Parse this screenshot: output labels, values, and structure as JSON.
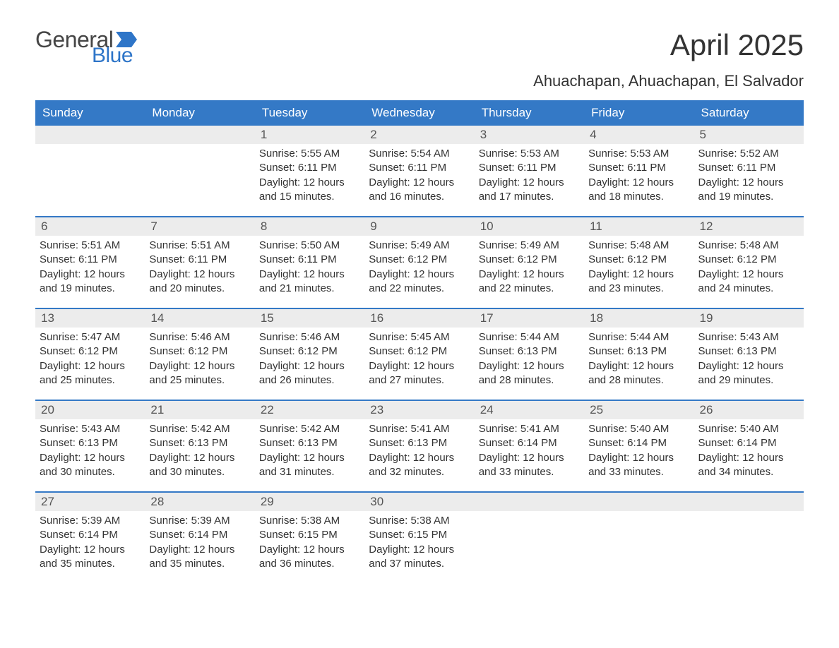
{
  "brand": {
    "word1": "General",
    "word2": "Blue",
    "word1_color": "#454545",
    "word2_color": "#2e75c8"
  },
  "title": "April 2025",
  "subtitle": "Ahuachapan, Ahuachapan, El Salvador",
  "colors": {
    "header_bg": "#3479c6",
    "header_text": "#ffffff",
    "daynum_bg": "#ececec",
    "week_border": "#3479c6",
    "body_text": "#333333",
    "background": "#ffffff"
  },
  "typography": {
    "title_fontsize": 42,
    "subtitle_fontsize": 22,
    "weekday_fontsize": 17,
    "daynum_fontsize": 17,
    "cell_fontsize": 15,
    "font_family": "Segoe UI"
  },
  "layout": {
    "columns": 7,
    "rows": 5,
    "leading_blanks": 2,
    "trailing_blanks": 3
  },
  "weekdays": [
    "Sunday",
    "Monday",
    "Tuesday",
    "Wednesday",
    "Thursday",
    "Friday",
    "Saturday"
  ],
  "days": [
    {
      "n": 1,
      "sunrise": "5:55 AM",
      "sunset": "6:11 PM",
      "daylight": "12 hours and 15 minutes."
    },
    {
      "n": 2,
      "sunrise": "5:54 AM",
      "sunset": "6:11 PM",
      "daylight": "12 hours and 16 minutes."
    },
    {
      "n": 3,
      "sunrise": "5:53 AM",
      "sunset": "6:11 PM",
      "daylight": "12 hours and 17 minutes."
    },
    {
      "n": 4,
      "sunrise": "5:53 AM",
      "sunset": "6:11 PM",
      "daylight": "12 hours and 18 minutes."
    },
    {
      "n": 5,
      "sunrise": "5:52 AM",
      "sunset": "6:11 PM",
      "daylight": "12 hours and 19 minutes."
    },
    {
      "n": 6,
      "sunrise": "5:51 AM",
      "sunset": "6:11 PM",
      "daylight": "12 hours and 19 minutes."
    },
    {
      "n": 7,
      "sunrise": "5:51 AM",
      "sunset": "6:11 PM",
      "daylight": "12 hours and 20 minutes."
    },
    {
      "n": 8,
      "sunrise": "5:50 AM",
      "sunset": "6:11 PM",
      "daylight": "12 hours and 21 minutes."
    },
    {
      "n": 9,
      "sunrise": "5:49 AM",
      "sunset": "6:12 PM",
      "daylight": "12 hours and 22 minutes."
    },
    {
      "n": 10,
      "sunrise": "5:49 AM",
      "sunset": "6:12 PM",
      "daylight": "12 hours and 22 minutes."
    },
    {
      "n": 11,
      "sunrise": "5:48 AM",
      "sunset": "6:12 PM",
      "daylight": "12 hours and 23 minutes."
    },
    {
      "n": 12,
      "sunrise": "5:48 AM",
      "sunset": "6:12 PM",
      "daylight": "12 hours and 24 minutes."
    },
    {
      "n": 13,
      "sunrise": "5:47 AM",
      "sunset": "6:12 PM",
      "daylight": "12 hours and 25 minutes."
    },
    {
      "n": 14,
      "sunrise": "5:46 AM",
      "sunset": "6:12 PM",
      "daylight": "12 hours and 25 minutes."
    },
    {
      "n": 15,
      "sunrise": "5:46 AM",
      "sunset": "6:12 PM",
      "daylight": "12 hours and 26 minutes."
    },
    {
      "n": 16,
      "sunrise": "5:45 AM",
      "sunset": "6:12 PM",
      "daylight": "12 hours and 27 minutes."
    },
    {
      "n": 17,
      "sunrise": "5:44 AM",
      "sunset": "6:13 PM",
      "daylight": "12 hours and 28 minutes."
    },
    {
      "n": 18,
      "sunrise": "5:44 AM",
      "sunset": "6:13 PM",
      "daylight": "12 hours and 28 minutes."
    },
    {
      "n": 19,
      "sunrise": "5:43 AM",
      "sunset": "6:13 PM",
      "daylight": "12 hours and 29 minutes."
    },
    {
      "n": 20,
      "sunrise": "5:43 AM",
      "sunset": "6:13 PM",
      "daylight": "12 hours and 30 minutes."
    },
    {
      "n": 21,
      "sunrise": "5:42 AM",
      "sunset": "6:13 PM",
      "daylight": "12 hours and 30 minutes."
    },
    {
      "n": 22,
      "sunrise": "5:42 AM",
      "sunset": "6:13 PM",
      "daylight": "12 hours and 31 minutes."
    },
    {
      "n": 23,
      "sunrise": "5:41 AM",
      "sunset": "6:13 PM",
      "daylight": "12 hours and 32 minutes."
    },
    {
      "n": 24,
      "sunrise": "5:41 AM",
      "sunset": "6:14 PM",
      "daylight": "12 hours and 33 minutes."
    },
    {
      "n": 25,
      "sunrise": "5:40 AM",
      "sunset": "6:14 PM",
      "daylight": "12 hours and 33 minutes."
    },
    {
      "n": 26,
      "sunrise": "5:40 AM",
      "sunset": "6:14 PM",
      "daylight": "12 hours and 34 minutes."
    },
    {
      "n": 27,
      "sunrise": "5:39 AM",
      "sunset": "6:14 PM",
      "daylight": "12 hours and 35 minutes."
    },
    {
      "n": 28,
      "sunrise": "5:39 AM",
      "sunset": "6:14 PM",
      "daylight": "12 hours and 35 minutes."
    },
    {
      "n": 29,
      "sunrise": "5:38 AM",
      "sunset": "6:15 PM",
      "daylight": "12 hours and 36 minutes."
    },
    {
      "n": 30,
      "sunrise": "5:38 AM",
      "sunset": "6:15 PM",
      "daylight": "12 hours and 37 minutes."
    }
  ],
  "labels": {
    "sunrise": "Sunrise:",
    "sunset": "Sunset:",
    "daylight": "Daylight:"
  }
}
